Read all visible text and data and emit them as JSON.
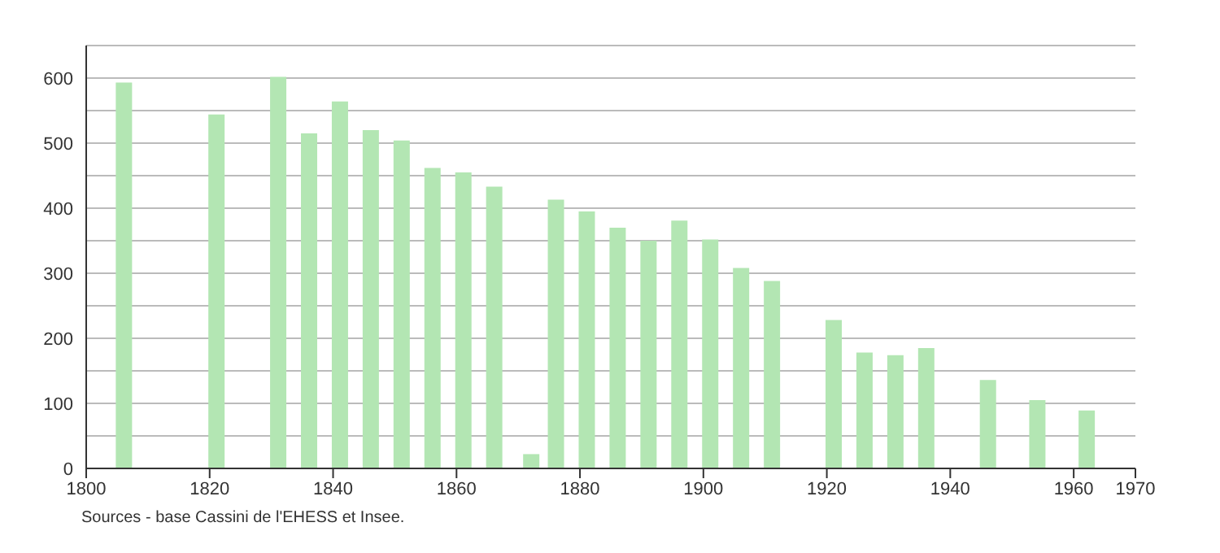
{
  "chart_data": {
    "type": "bar",
    "x": [
      1806,
      1821,
      1831,
      1836,
      1841,
      1846,
      1851,
      1856,
      1861,
      1866,
      1872,
      1876,
      1881,
      1886,
      1891,
      1896,
      1901,
      1906,
      1911,
      1921,
      1926,
      1931,
      1936,
      1946,
      1954,
      1962
    ],
    "values": [
      593,
      544,
      602,
      515,
      564,
      520,
      504,
      462,
      455,
      433,
      22,
      413,
      395,
      370,
      350,
      381,
      352,
      308,
      288,
      228,
      178,
      174,
      185,
      136,
      105,
      89
    ],
    "color": "#b3e6b3",
    "xlim": [
      1800,
      1970
    ],
    "xticks": [
      1800,
      1820,
      1840,
      1860,
      1880,
      1900,
      1920,
      1940,
      1960,
      1970
    ],
    "ylim": [
      0,
      650
    ],
    "yticks": [
      0,
      {
        "value": 50,
        "label": null
      },
      100,
      {
        "value": 150,
        "label": null
      },
      200,
      {
        "value": 250,
        "label": null
      },
      300,
      {
        "value": 350,
        "label": null
      },
      400,
      {
        "value": 450,
        "label": null
      },
      500,
      {
        "value": 550,
        "label": null
      },
      600,
      {
        "value": 650,
        "label": null
      }
    ],
    "grid": "y",
    "annotations": [
      "Sources - base Cassini de l'EHESS et Insee."
    ]
  }
}
